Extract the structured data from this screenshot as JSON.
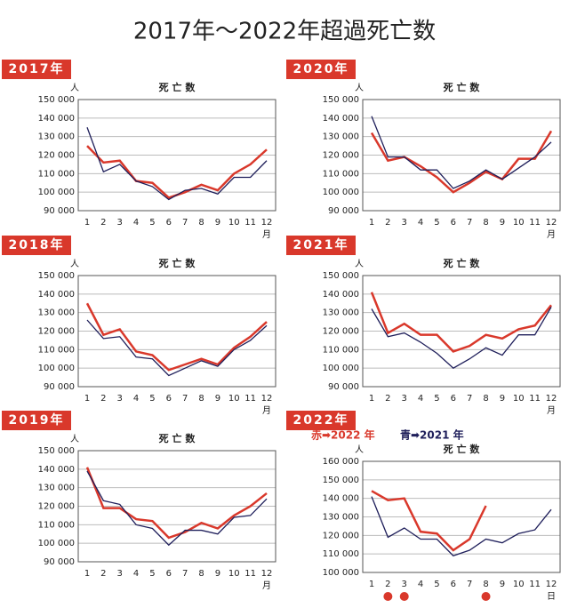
{
  "title": "2017年〜2022年超過死亡数",
  "chart_data": [
    {
      "type": "line",
      "badge": "2017年",
      "title": "死 亡 数",
      "y_unit": "人",
      "x_unit": "月",
      "categories": [
        1,
        2,
        3,
        4,
        5,
        6,
        7,
        8,
        9,
        10,
        11,
        12
      ],
      "ylim": [
        90000,
        150000
      ],
      "yticks": [
        {
          "value": 90000,
          "label": "90 000"
        },
        {
          "value": 100000,
          "label": "100 000"
        },
        {
          "value": 110000,
          "label": "110 000"
        },
        {
          "value": 120000,
          "label": "120 000"
        },
        {
          "value": 130000,
          "label": "130 000"
        },
        {
          "value": 140000,
          "label": "140 000"
        },
        {
          "value": 150000,
          "label": "150 000"
        }
      ],
      "grid": true,
      "series": [
        {
          "color": "#d9382b",
          "values": [
            125000,
            116000,
            117000,
            106000,
            105000,
            97000,
            100000,
            104000,
            101000,
            110000,
            115000,
            123000
          ]
        },
        {
          "color": "#1e1e5a",
          "values": [
            135000,
            111000,
            115000,
            106000,
            103000,
            96000,
            101000,
            102000,
            99000,
            108000,
            108000,
            117000
          ]
        }
      ]
    },
    {
      "type": "line",
      "badge": "2020年",
      "title": "死 亡 数",
      "y_unit": "人",
      "x_unit": "月",
      "categories": [
        1,
        2,
        3,
        4,
        5,
        6,
        7,
        8,
        9,
        10,
        11,
        12
      ],
      "ylim": [
        90000,
        150000
      ],
      "yticks": [
        {
          "value": 90000,
          "label": "90 000"
        },
        {
          "value": 100000,
          "label": "100 000"
        },
        {
          "value": 110000,
          "label": "110 000"
        },
        {
          "value": 120000,
          "label": "120 000"
        },
        {
          "value": 130000,
          "label": "130 000"
        },
        {
          "value": 140000,
          "label": "140 000"
        },
        {
          "value": 150000,
          "label": "150 000"
        }
      ],
      "grid": true,
      "series": [
        {
          "color": "#d9382b",
          "values": [
            132000,
            117000,
            119000,
            114000,
            108000,
            100000,
            105000,
            111000,
            107000,
            118000,
            118000,
            133000
          ]
        },
        {
          "color": "#1e1e5a",
          "values": [
            141000,
            119000,
            119000,
            112000,
            112000,
            102000,
            106000,
            112000,
            107000,
            113000,
            119000,
            127000
          ]
        }
      ]
    },
    {
      "type": "line",
      "badge": "2018年",
      "title": "死 亡 数",
      "y_unit": "人",
      "x_unit": "月",
      "categories": [
        1,
        2,
        3,
        4,
        5,
        6,
        7,
        8,
        9,
        10,
        11,
        12
      ],
      "ylim": [
        90000,
        150000
      ],
      "yticks": [
        {
          "value": 90000,
          "label": "90 000"
        },
        {
          "value": 100000,
          "label": "100 000"
        },
        {
          "value": 110000,
          "label": "110 000"
        },
        {
          "value": 120000,
          "label": "120 000"
        },
        {
          "value": 130000,
          "label": "130 000"
        },
        {
          "value": 140000,
          "label": "140 000"
        },
        {
          "value": 150000,
          "label": "150 000"
        }
      ],
      "grid": true,
      "series": [
        {
          "color": "#d9382b",
          "values": [
            135000,
            118000,
            121000,
            109000,
            107000,
            99000,
            102000,
            105000,
            102000,
            111000,
            117000,
            125000
          ]
        },
        {
          "color": "#1e1e5a",
          "values": [
            126000,
            116000,
            117000,
            106000,
            105000,
            96000,
            100000,
            104000,
            101000,
            110000,
            115000,
            123000
          ]
        }
      ]
    },
    {
      "type": "line",
      "badge": "2021年",
      "title": "死 亡 数",
      "y_unit": "人",
      "x_unit": "月",
      "categories": [
        1,
        2,
        3,
        4,
        5,
        6,
        7,
        8,
        9,
        10,
        11,
        12
      ],
      "ylim": [
        90000,
        150000
      ],
      "yticks": [
        {
          "value": 90000,
          "label": "90 000"
        },
        {
          "value": 100000,
          "label": "100 000"
        },
        {
          "value": 110000,
          "label": "110 000"
        },
        {
          "value": 120000,
          "label": "120 000"
        },
        {
          "value": 130000,
          "label": "130 000"
        },
        {
          "value": 140000,
          "label": "140 000"
        },
        {
          "value": 150000,
          "label": "150 000"
        }
      ],
      "grid": true,
      "series": [
        {
          "color": "#d9382b",
          "values": [
            141000,
            119000,
            124000,
            118000,
            118000,
            109000,
            112000,
            118000,
            116000,
            121000,
            123000,
            134000
          ]
        },
        {
          "color": "#1e1e5a",
          "values": [
            132000,
            117000,
            119000,
            114000,
            108000,
            100000,
            105000,
            111000,
            107000,
            118000,
            118000,
            133000
          ]
        }
      ]
    },
    {
      "type": "line",
      "badge": "2019年",
      "title": "死 亡 数",
      "y_unit": "人",
      "x_unit": "月",
      "categories": [
        1,
        2,
        3,
        4,
        5,
        6,
        7,
        8,
        9,
        10,
        11,
        12
      ],
      "ylim": [
        90000,
        150000
      ],
      "yticks": [
        {
          "value": 90000,
          "label": "90 000"
        },
        {
          "value": 100000,
          "label": "100 000"
        },
        {
          "value": 110000,
          "label": "110 000"
        },
        {
          "value": 120000,
          "label": "120 000"
        },
        {
          "value": 130000,
          "label": "130 000"
        },
        {
          "value": 140000,
          "label": "140 000"
        },
        {
          "value": 150000,
          "label": "150 000"
        }
      ],
      "grid": true,
      "series": [
        {
          "color": "#d9382b",
          "values": [
            141000,
            119000,
            119000,
            113000,
            112000,
            103000,
            106000,
            111000,
            108000,
            115000,
            120000,
            127000
          ]
        },
        {
          "color": "#1e1e5a",
          "values": [
            139000,
            123000,
            121000,
            110000,
            108000,
            99000,
            107000,
            107000,
            105000,
            114000,
            115000,
            124000
          ]
        }
      ]
    },
    {
      "type": "line",
      "badge": "2022年",
      "title": "死 亡 数",
      "y_unit": "人",
      "x_unit": "日",
      "categories": [
        1,
        2,
        3,
        4,
        5,
        6,
        7,
        8,
        9,
        10,
        11,
        12
      ],
      "ylim": [
        100000,
        160000
      ],
      "yticks": [
        {
          "value": 100000,
          "label": "100 000"
        },
        {
          "value": 110000,
          "label": "110 000"
        },
        {
          "value": 120000,
          "label": "120 000"
        },
        {
          "value": 130000,
          "label": "130 000"
        },
        {
          "value": 140000,
          "label": "140 000"
        },
        {
          "value": 150000,
          "label": "150 000"
        },
        {
          "value": 160000,
          "label": "160 000"
        }
      ],
      "grid": true,
      "highlight": [
        2,
        3,
        8
      ],
      "highlight_color": "#d9382b",
      "series": [
        {
          "name": "赤➡2022 年",
          "color": "#d9382b",
          "values": [
            144000,
            139000,
            140000,
            122000,
            121000,
            112000,
            118000,
            136000,
            null,
            null,
            null,
            null
          ]
        },
        {
          "name": "青➡2021 年",
          "color": "#1e1e5a",
          "values": [
            141000,
            119000,
            124000,
            118000,
            118000,
            109000,
            112000,
            118000,
            116000,
            121000,
            123000,
            134000
          ]
        }
      ]
    }
  ]
}
